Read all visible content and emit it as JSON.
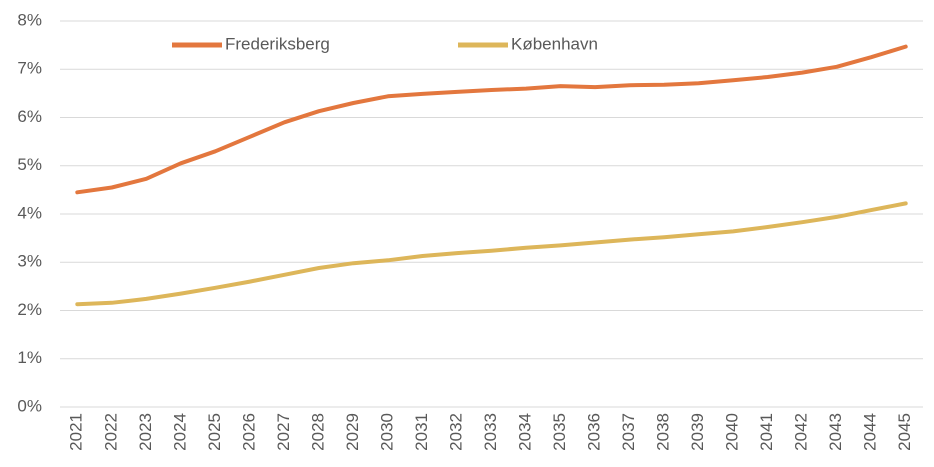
{
  "chart_data": {
    "type": "line",
    "categories": [
      "2021",
      "2022",
      "2023",
      "2024",
      "2025",
      "2026",
      "2027",
      "2028",
      "2029",
      "2030",
      "2031",
      "2032",
      "2033",
      "2034",
      "2035",
      "2036",
      "2037",
      "2038",
      "2039",
      "2040",
      "2041",
      "2042",
      "2043",
      "2044",
      "2045"
    ],
    "series": [
      {
        "name": "Frederiksberg",
        "color": "#e3773e",
        "values": [
          4.45,
          4.55,
          4.73,
          5.05,
          5.3,
          5.6,
          5.9,
          6.13,
          6.3,
          6.44,
          6.49,
          6.53,
          6.57,
          6.6,
          6.65,
          6.63,
          6.67,
          6.68,
          6.71,
          6.77,
          6.84,
          6.93,
          7.05,
          7.25,
          7.47
        ]
      },
      {
        "name": "København",
        "color": "#ddb65a",
        "values": [
          2.13,
          2.16,
          2.24,
          2.35,
          2.47,
          2.6,
          2.74,
          2.88,
          2.98,
          3.04,
          3.13,
          3.19,
          3.24,
          3.3,
          3.35,
          3.41,
          3.47,
          3.52,
          3.58,
          3.64,
          3.73,
          3.83,
          3.94,
          4.08,
          4.22
        ]
      }
    ],
    "ylim": [
      0,
      8
    ],
    "yticks": [
      {
        "value": 0,
        "label": "0%"
      },
      {
        "value": 1,
        "label": "1%"
      },
      {
        "value": 2,
        "label": "2%"
      },
      {
        "value": 3,
        "label": "3%"
      },
      {
        "value": 4,
        "label": "4%"
      },
      {
        "value": 5,
        "label": "5%"
      },
      {
        "value": 6,
        "label": "6%"
      },
      {
        "value": 7,
        "label": "7%"
      },
      {
        "value": 8,
        "label": "8%"
      }
    ],
    "grid": true,
    "legend": "top"
  }
}
